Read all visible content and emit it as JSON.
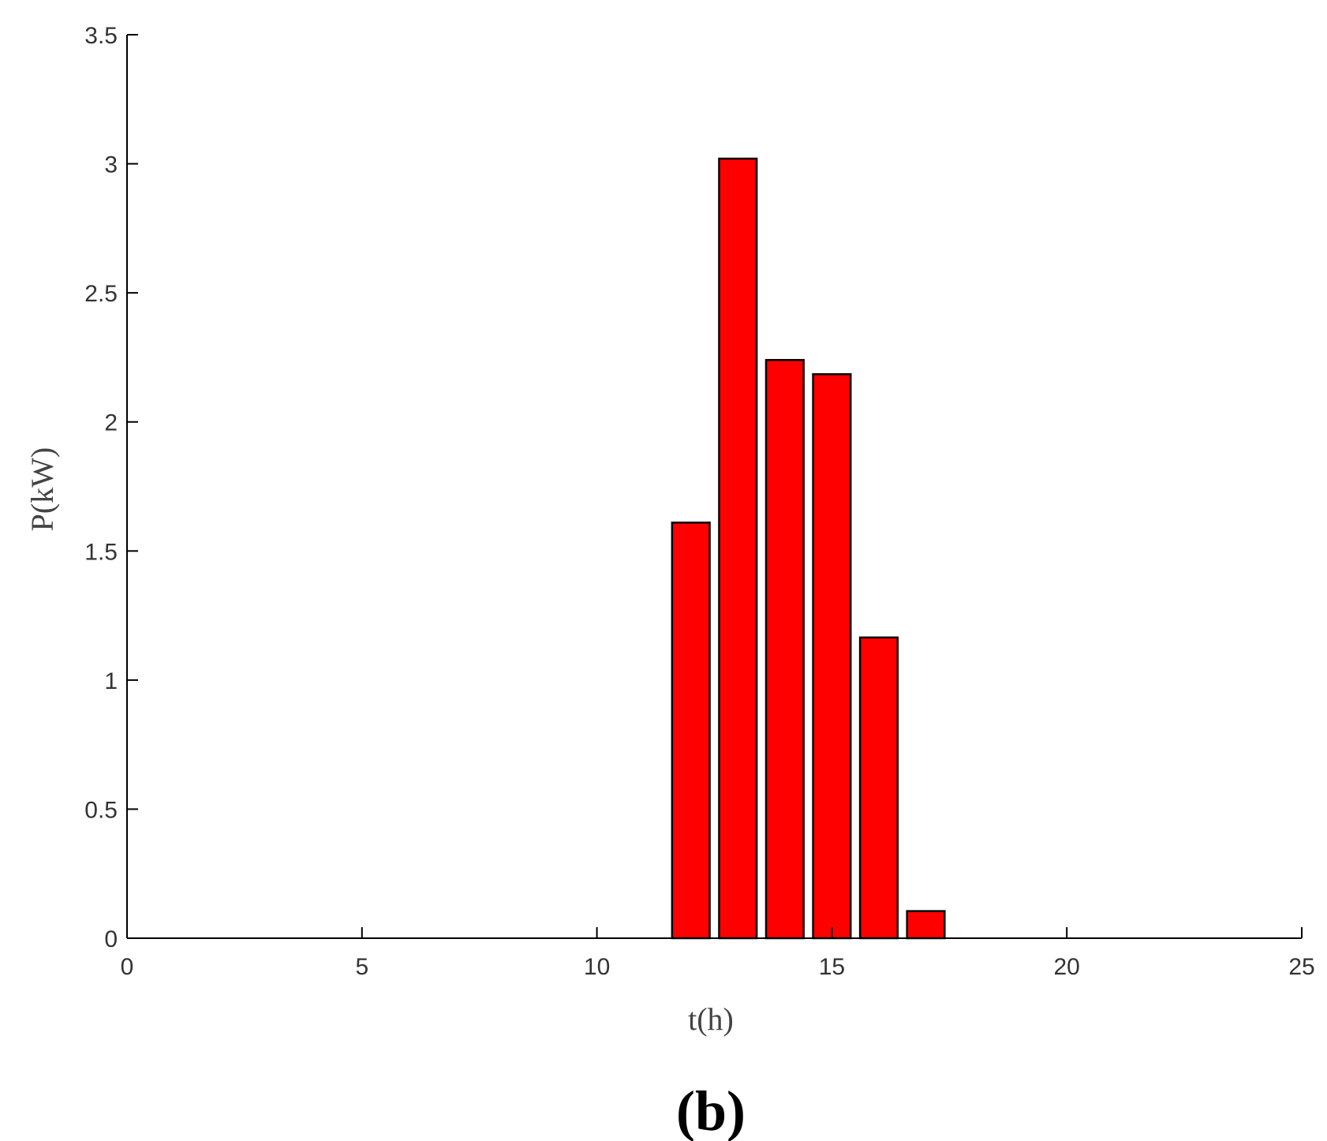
{
  "chart_data": {
    "type": "bar",
    "x": [
      12,
      13,
      14,
      15,
      16,
      17
    ],
    "values": [
      1.61,
      3.02,
      2.24,
      2.185,
      1.165,
      0.105
    ],
    "xlabel": "t(h)",
    "ylabel": "P(kW)",
    "xlim": [
      0,
      25
    ],
    "ylim": [
      0,
      3.5
    ],
    "xticks": [
      0,
      5,
      10,
      15,
      20,
      25
    ],
    "yticks": [
      0,
      0.5,
      1,
      1.5,
      2,
      2.5,
      3,
      3.5
    ],
    "bar_width": 0.8,
    "grid": false,
    "bar_color": "#ff0000",
    "bar_edge_color": "#000000"
  },
  "panel_label": "(b)"
}
